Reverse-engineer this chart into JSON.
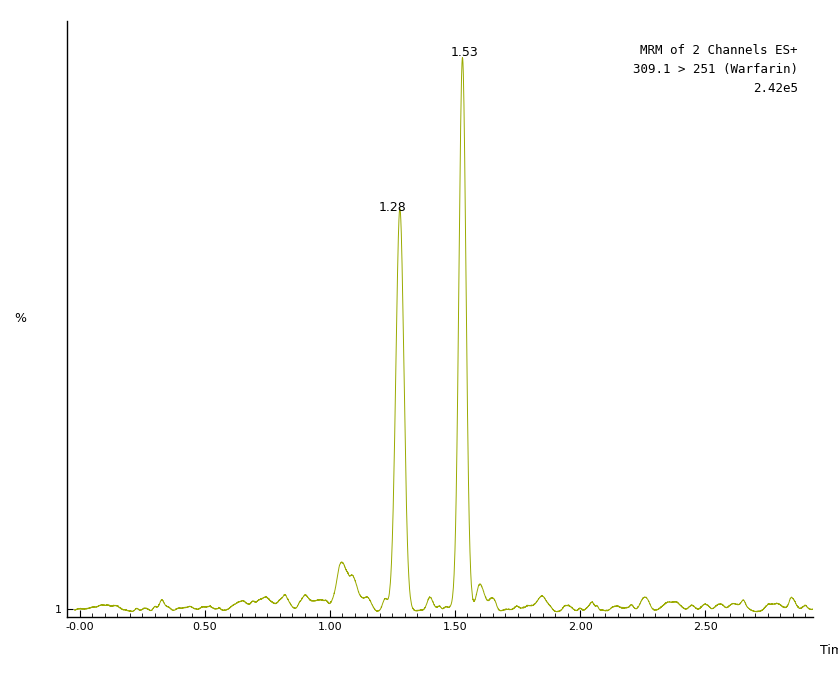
{
  "line_color": "#9aaa00",
  "background_color": "#ffffff",
  "xlabel": "Time",
  "ylabel": "%",
  "xlim": [
    -0.05,
    2.93
  ],
  "ylim": [
    0,
    108
  ],
  "xticks": [
    0.0,
    0.5,
    1.0,
    1.5,
    2.0,
    2.5
  ],
  "xtick_labels": [
    "-0.00",
    "0.50",
    "1.00",
    "1.50",
    "2.00",
    "2.50"
  ],
  "ytick_label_bottom": "1",
  "annotation_lines": [
    "MRM of 2 Channels ES+",
    "309.1 > 251 (Warfarin)",
    "2.42e5"
  ],
  "peak1_label": "1.28",
  "peak2_label": "1.53",
  "peak1_x": 1.28,
  "peak2_x": 1.53,
  "peak1_height": 72,
  "peak2_height": 100,
  "fontsize_annotation": 9,
  "fontsize_axis_label": 9,
  "fontsize_tick": 8
}
